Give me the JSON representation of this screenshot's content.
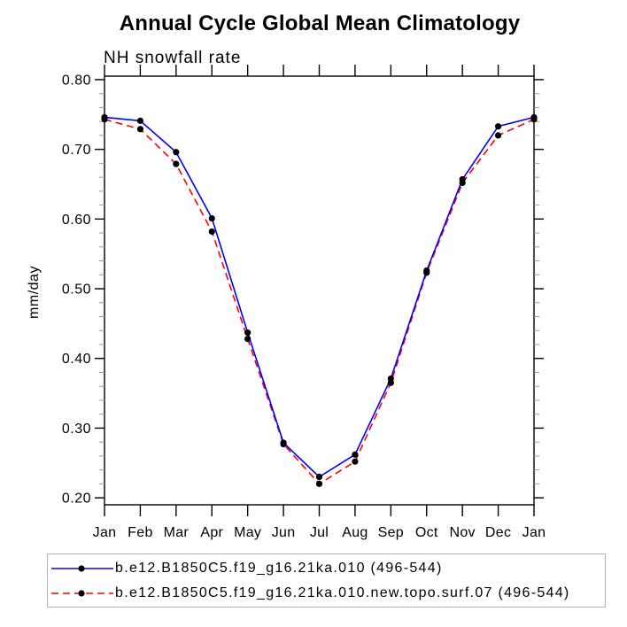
{
  "title": "Annual Cycle Global Mean Climatology",
  "subtitle": "NH snowfall rate",
  "colors": {
    "series1": "#0000ff",
    "series2": "#ff0000",
    "marker": "#000000",
    "axis": "#000000",
    "minor_tick": "#999999",
    "legend_border": "#b2b2b2"
  },
  "chart_data": {
    "type": "line",
    "title": "Annual Cycle Global Mean Climatology",
    "subtitle": "NH snowfall rate",
    "xlabel": "",
    "ylabel": "mm/day",
    "categories": [
      "Jan",
      "Feb",
      "Mar",
      "Apr",
      "May",
      "Jun",
      "Jul",
      "Aug",
      "Sep",
      "Oct",
      "Nov",
      "Dec",
      "Jan"
    ],
    "yticks": [
      0.2,
      0.3,
      0.4,
      0.5,
      0.6,
      0.7,
      0.8
    ],
    "ytick_labels": [
      "0.20",
      "0.30",
      "0.40",
      "0.50",
      "0.60",
      "0.70",
      "0.80"
    ],
    "ylim": [
      0.19,
      0.805
    ],
    "minor_tick_step": 0.02,
    "grid": false,
    "legend_position": "bottom-left",
    "series": [
      {
        "name": "b.e12.B1850C5.f19_g16.21ka.010 (496-544)",
        "color": "#0000ff",
        "line_style": "solid",
        "marker": "filled-circle",
        "marker_color": "#000000",
        "values": [
          0.746,
          0.741,
          0.696,
          0.601,
          0.437,
          0.279,
          0.23,
          0.262,
          0.371,
          0.526,
          0.657,
          0.733,
          0.746
        ]
      },
      {
        "name": "b.e12.B1850C5.f19_g16.21ka.010.new.topo.surf.07 (496-544)",
        "color": "#ff0000",
        "line_style": "dashed",
        "marker": "filled-circle",
        "marker_color": "#000000",
        "values": [
          0.743,
          0.729,
          0.679,
          0.582,
          0.428,
          0.277,
          0.22,
          0.252,
          0.365,
          0.523,
          0.652,
          0.72,
          0.743
        ]
      }
    ]
  }
}
